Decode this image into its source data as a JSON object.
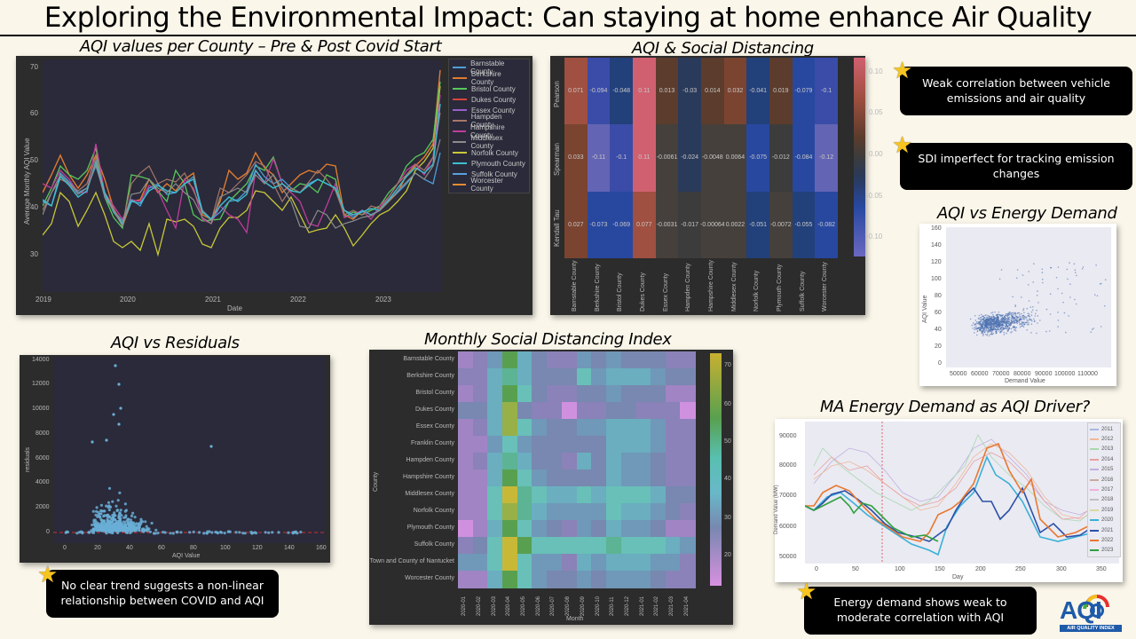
{
  "slide": {
    "title": "Exploring the Environmental Impact: Can staying at home enhance Air Quality"
  },
  "charts": {
    "line_county": {
      "title": "AQI values per County – Pre & Post Covid Start",
      "ylabel": "Average Monthly AQI Value",
      "xlabel": "Date",
      "yticks": [
        "70",
        "60",
        "50",
        "40",
        "30"
      ],
      "xticks": [
        "2019",
        "2020",
        "2021",
        "2022",
        "2023"
      ],
      "legend": [
        {
          "label": "Barnstable County",
          "color": "#4c9fd6"
        },
        {
          "label": "Berkshire County",
          "color": "#e07b2e"
        },
        {
          "label": "Bristol County",
          "color": "#58c85a"
        },
        {
          "label": "Dukes County",
          "color": "#d9453d"
        },
        {
          "label": "Essex County",
          "color": "#9a60c8"
        },
        {
          "label": "Hampden County",
          "color": "#a8786a"
        },
        {
          "label": "Hampshire County",
          "color": "#c03c9a"
        },
        {
          "label": "Middlesex County",
          "color": "#8c8c8c"
        },
        {
          "label": "Norfolk County",
          "color": "#c8c838"
        },
        {
          "label": "Plymouth County",
          "color": "#3cc0d0"
        },
        {
          "label": "Suffolk County",
          "color": "#5aa0e0"
        },
        {
          "label": "Worcester County",
          "color": "#e88a30"
        }
      ]
    },
    "correlation": {
      "title": "AQI & Social Distancing",
      "rows": [
        "Pearson",
        "Spearman",
        "Kendall Tau"
      ],
      "columns": [
        "Barnstable County",
        "Berkshire County",
        "Bristol County",
        "Dukes County",
        "Essex County",
        "Hampden County",
        "Hampshire County",
        "Middlesex County",
        "Norfolk County",
        "Plymouth County",
        "Suffolk County",
        "Worcester County"
      ],
      "values": [
        [
          "0.071",
          "-0.094",
          "-0.048",
          "0.11",
          "0.013",
          "-0.03",
          "0.014",
          "0.032",
          "-0.041",
          "0.019",
          "-0.079",
          "-0.1"
        ],
        [
          "0.033",
          "-0.11",
          "-0.1",
          "0.11",
          "-0.0061",
          "-0.024",
          "-0.0048",
          "0.0064",
          "-0.075",
          "-0.012",
          "-0.084",
          "-0.12"
        ],
        [
          "0.027",
          "-0.073",
          "-0.069",
          "0.077",
          "-0.0031",
          "-0.017",
          "-0.00064",
          "0.0022",
          "-0.051",
          "-0.0072",
          "-0.055",
          "-0.082"
        ]
      ],
      "colorbar_ticks": [
        "0.10",
        "0.05",
        "0.00",
        "-0.05",
        "-0.10"
      ]
    },
    "energy_scatter": {
      "title": "AQI vs Energy Demand",
      "ylabel": "AQI Value",
      "xlabel": "Demand Value",
      "yticks": [
        "160",
        "140",
        "120",
        "100",
        "80",
        "60",
        "40",
        "20",
        "0"
      ],
      "xticks": [
        "50000",
        "60000",
        "70000",
        "80000",
        "90000",
        "100000",
        "110000"
      ]
    },
    "residuals": {
      "title": "AQI vs Residuals",
      "ylabel": "residuals",
      "xlabel": "AQI Value",
      "yticks": [
        "14000",
        "12000",
        "10000",
        "8000",
        "6000",
        "4000",
        "2000",
        "0"
      ],
      "xticks": [
        "0",
        "20",
        "40",
        "60",
        "80",
        "100",
        "120",
        "140",
        "160"
      ]
    },
    "sdi": {
      "title": "Monthly Social Distancing Index",
      "ylabel": "County",
      "xlabel": "Month",
      "rows": [
        "Barnstable County",
        "Berkshire County",
        "Bristol County",
        "Dukes County",
        "Essex County",
        "Franklin County",
        "Hampden County",
        "Hampshire County",
        "Middlesex County",
        "Norfolk County",
        "Plymouth County",
        "Suffolk County",
        "Town and County of Nantucket",
        "Worcester County"
      ],
      "columns": [
        "2020-01",
        "2020-02",
        "2020-03",
        "2020-04",
        "2020-05",
        "2020-06",
        "2020-07",
        "2020-08",
        "2020-09",
        "2020-10",
        "2020-11",
        "2020-12",
        "2021-01",
        "2021-02",
        "2021-03",
        "2021-04"
      ],
      "colorbar_ticks": [
        "70",
        "60",
        "50",
        "40",
        "30",
        "20"
      ]
    },
    "energy_demand": {
      "title": "MA Energy Demand as AQI Driver?",
      "ylabel": "Demand Value (MW)",
      "xlabel": "Day",
      "yticks": [
        "90000",
        "80000",
        "70000",
        "60000",
        "50000"
      ],
      "xticks": [
        "0",
        "50",
        "100",
        "150",
        "200",
        "250",
        "300",
        "350"
      ],
      "legend": [
        {
          "label": "2011",
          "color": "#a8b8e0"
        },
        {
          "label": "2012",
          "color": "#f0b898"
        },
        {
          "label": "2013",
          "color": "#a8d8b0"
        },
        {
          "label": "2014",
          "color": "#e8a0a0"
        },
        {
          "label": "2015",
          "color": "#c0b0e0"
        },
        {
          "label": "2016",
          "color": "#c8aaa0"
        },
        {
          "label": "2017",
          "color": "#f0b0d8"
        },
        {
          "label": "2018",
          "color": "#c0c0c0"
        },
        {
          "label": "2019",
          "color": "#d8d8a0"
        },
        {
          "label": "2020",
          "color": "#3ab0d8"
        },
        {
          "label": "2021",
          "color": "#2c50a8"
        },
        {
          "label": "2022",
          "color": "#e87830"
        },
        {
          "label": "2023",
          "color": "#30a040"
        }
      ]
    }
  },
  "callouts": {
    "vehicle": "Weak correlation between vehicle emissions and air quality",
    "sdi": "SDI imperfect for tracking emission changes",
    "residuals": "No clear trend suggests a non-linear relationship between COVID and AQI",
    "energy": "Energy demand shows weak to moderate correlation with AQI"
  },
  "logo": {
    "text": "AQI",
    "subtext": "AIR QUALITY INDEX"
  }
}
